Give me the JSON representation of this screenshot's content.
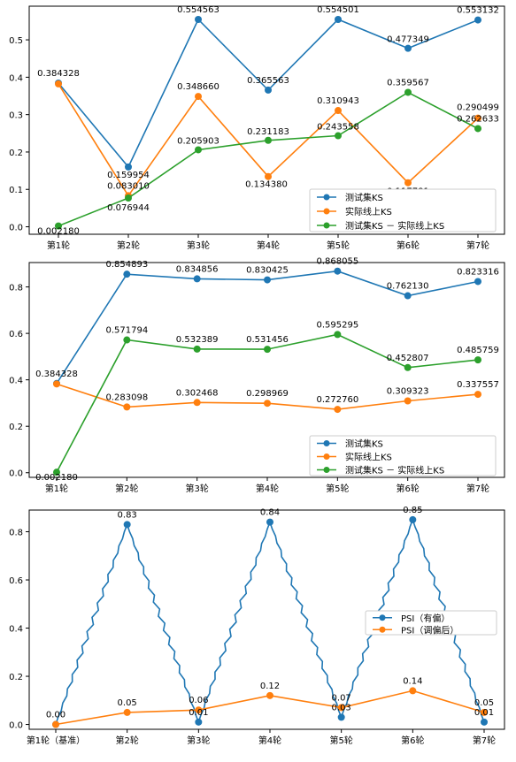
{
  "chart_data": [
    {
      "type": "line",
      "categories": [
        "第1轮",
        "第2轮",
        "第3轮",
        "第4轮",
        "第5轮",
        "第6轮",
        "第7轮"
      ],
      "ylim": [
        -0.02,
        0.59
      ],
      "yticks": [
        0.0,
        0.1,
        0.2,
        0.3,
        0.4,
        0.5
      ],
      "ytick_labels": [
        "0.0",
        "0.1",
        "0.2",
        "0.3",
        "0.4",
        "0.5"
      ],
      "legend_position": "lower-right",
      "series": [
        {
          "name": "测试集KS",
          "color": "#1f77b4",
          "values": [
            0.384328,
            0.159954,
            0.554563,
            0.365563,
            0.554501,
            0.477349,
            0.553132
          ],
          "labels": [
            "0.384328",
            "0.159954",
            "0.554563",
            "0.365563",
            "0.554501",
            "0.477349",
            "0.553132"
          ]
        },
        {
          "name": "实际线上KS",
          "color": "#ff7f0e",
          "values": [
            0.382148,
            0.08301,
            0.34866,
            0.13438,
            0.310943,
            0.117781,
            0.290499
          ],
          "labels": [
            "",
            "0.083010",
            "0.348660",
            "0.134380",
            "0.310943",
            "0.117781",
            "0.290499"
          ]
        },
        {
          "name": "测试集KS － 实际线上KS",
          "color": "#2ca02c",
          "values": [
            0.00218,
            0.076944,
            0.205903,
            0.231183,
            0.243558,
            0.359567,
            0.262633
          ],
          "labels": [
            "0.002180",
            "0.076944",
            "0.205903",
            "0.231183",
            "0.243558",
            "0.359567",
            "0.262633"
          ]
        }
      ]
    },
    {
      "type": "line",
      "categories": [
        "第1轮",
        "第2轮",
        "第3轮",
        "第4轮",
        "第5轮",
        "第6轮",
        "第7轮"
      ],
      "ylim": [
        -0.02,
        0.905
      ],
      "yticks": [
        0.0,
        0.2,
        0.4,
        0.6,
        0.8
      ],
      "ytick_labels": [
        "0.0",
        "0.2",
        "0.4",
        "0.6",
        "0.8"
      ],
      "legend_position": "lower-right",
      "series": [
        {
          "name": "测试集KS",
          "color": "#1f77b4",
          "values": [
            0.384328,
            0.854893,
            0.834856,
            0.830425,
            0.868055,
            0.76213,
            0.823316
          ],
          "labels": [
            "0.384328",
            "0.854893",
            "0.834856",
            "0.830425",
            "0.868055",
            "0.762130",
            "0.823316"
          ]
        },
        {
          "name": "实际线上KS",
          "color": "#ff7f0e",
          "values": [
            0.382148,
            0.283098,
            0.302468,
            0.298969,
            0.27276,
            0.309323,
            0.337557
          ],
          "labels": [
            "",
            "0.283098",
            "0.302468",
            "0.298969",
            "0.272760",
            "0.309323",
            "0.337557"
          ]
        },
        {
          "name": "测试集KS － 实际线上KS",
          "color": "#2ca02c",
          "values": [
            0.00218,
            0.571794,
            0.532389,
            0.531456,
            0.595295,
            0.452807,
            0.485759
          ],
          "labels": [
            "0.002180",
            "0.571794",
            "0.532389",
            "0.531456",
            "0.595295",
            "0.452807",
            "0.485759"
          ]
        }
      ]
    },
    {
      "type": "line",
      "categories": [
        "第1轮（基准）",
        "第2轮",
        "第3轮",
        "第4轮",
        "第5轮",
        "第6轮",
        "第7轮"
      ],
      "ylim": [
        -0.02,
        0.89
      ],
      "yticks": [
        0.0,
        0.2,
        0.4,
        0.6,
        0.8
      ],
      "ytick_labels": [
        "0.0",
        "0.2",
        "0.4",
        "0.6",
        "0.8"
      ],
      "legend_position": "center-right",
      "series": [
        {
          "name": "PSI（有偏）",
          "color": "#1f77b4",
          "values": [
            0.0,
            0.83,
            0.01,
            0.84,
            0.03,
            0.85,
            0.01
          ],
          "labels": [
            "",
            "0.83",
            "0.01",
            "0.84",
            "0.03",
            "0.85",
            "0.01"
          ]
        },
        {
          "name": "PSI（调偏后）",
          "color": "#ff7f0e",
          "values": [
            0.0,
            0.05,
            0.06,
            0.12,
            0.07,
            0.14,
            0.05
          ],
          "labels": [
            "0.00",
            "0.05",
            "0.06",
            "0.12",
            "0.07",
            "0.14",
            "0.05"
          ]
        }
      ]
    }
  ]
}
